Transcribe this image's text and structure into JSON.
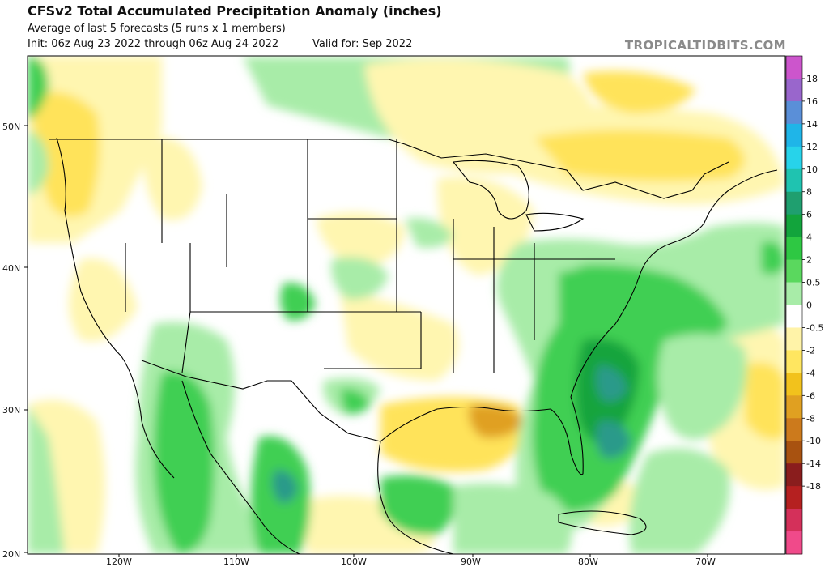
{
  "header": {
    "title": "CFSv2 Total Accumulated Precipitation Anomaly (inches)",
    "subtitle": "Average of last 5 forecasts (5 runs x 1 members)",
    "init": "Init: 06z Aug 23 2022 through 06z Aug 24 2022",
    "valid": "Valid for: Sep 2022",
    "brand": "TROPICALTIDBITS.COM"
  },
  "axes": {
    "lat_labels": [
      "50N",
      "40N",
      "30N",
      "20N"
    ],
    "lon_labels": [
      "120W",
      "110W",
      "100W",
      "90W",
      "80W",
      "70W"
    ]
  },
  "colorbar": {
    "labels": [
      "18",
      "16",
      "14",
      "12",
      "10",
      "8",
      "6",
      "4",
      "2",
      "0.5",
      "0",
      "-0.5",
      "-2",
      "-4",
      "-6",
      "-8",
      "-10",
      "-14",
      "-18"
    ],
    "colors": [
      "#cc55cc",
      "#9966cc",
      "#5a8fd8",
      "#1fb5e8",
      "#27d3ea",
      "#1fc3b0",
      "#1f9f6f",
      "#12a43c",
      "#2ec843",
      "#5ad85e",
      "#a8eca8",
      "#ffffff",
      "#fff3a8",
      "#ffe660",
      "#f2c21c",
      "#e0a021",
      "#cc7a1c",
      "#a85210",
      "#8a1d1d",
      "#b52020",
      "#d4305a",
      "#f04a8a"
    ]
  },
  "colors": {
    "green_light": "#a8eca8",
    "green": "#3fcf52",
    "green_dark": "#129c3a",
    "teal": "#2a9a8a",
    "yellow_light": "#fff6b0",
    "yellow": "#ffe35a",
    "orange": "#e0a021",
    "land_border": "#000000"
  }
}
